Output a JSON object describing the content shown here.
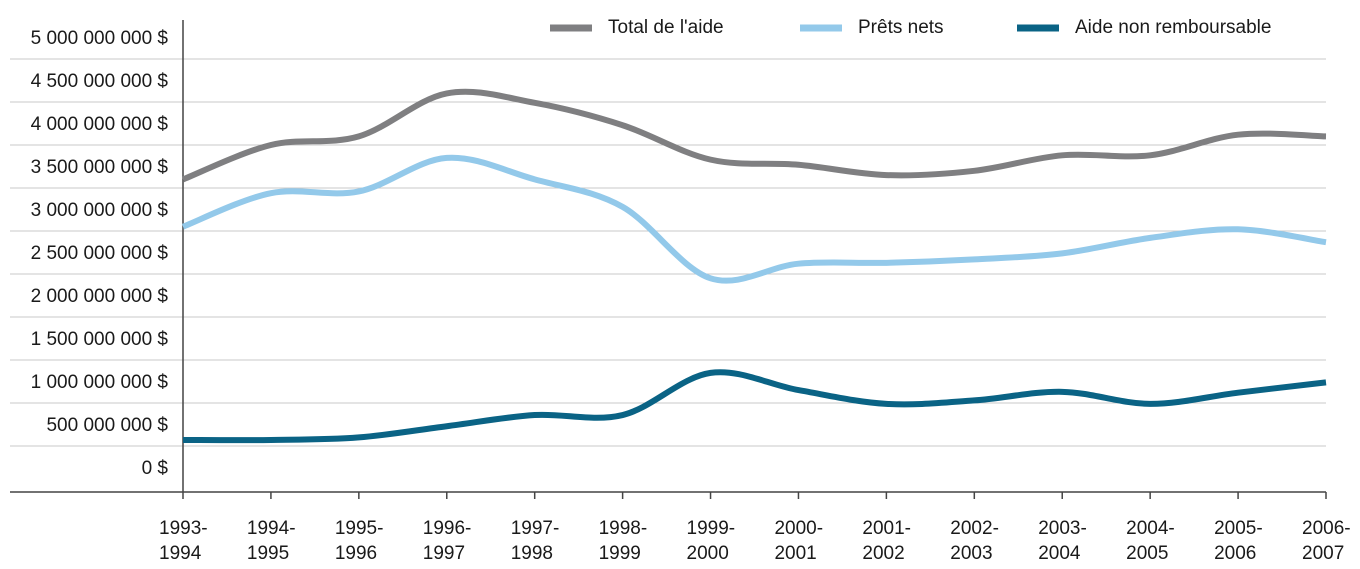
{
  "chart_data": {
    "type": "line",
    "categories": [
      "1993-1994",
      "1994-1995",
      "1995-1996",
      "1996-1997",
      "1997-1998",
      "1998-1999",
      "1999-2000",
      "2000-2001",
      "2001-2002",
      "2002-2003",
      "2003-2004",
      "2004-2005",
      "2005-2006",
      "2006-2007"
    ],
    "series": [
      {
        "name": "Total de l'aide",
        "color": "#7f7f81",
        "values": [
          3600000000,
          4000000000,
          4100000000,
          4600000000,
          4490000000,
          4230000000,
          3830000000,
          3770000000,
          3650000000,
          3700000000,
          3880000000,
          3880000000,
          4120000000,
          4100000000
        ]
      },
      {
        "name": "Prêts nets",
        "color": "#93c9ea",
        "values": [
          3050000000,
          3440000000,
          3460000000,
          3850000000,
          3600000000,
          3280000000,
          2450000000,
          2620000000,
          2630000000,
          2670000000,
          2740000000,
          2920000000,
          3020000000,
          2870000000
        ]
      },
      {
        "name": "Aide non remboursable",
        "color": "#0a6385",
        "values": [
          570000000,
          570000000,
          600000000,
          730000000,
          860000000,
          860000000,
          1350000000,
          1150000000,
          990000000,
          1030000000,
          1130000000,
          990000000,
          1120000000,
          1240000000
        ]
      }
    ],
    "ylim": [
      0,
      5500000000
    ],
    "yticks": [
      {
        "value": 0,
        "label": "0 $"
      },
      {
        "value": 500000000,
        "label": "500 000 000 $"
      },
      {
        "value": 1000000000,
        "label": "1 000 000 000 $"
      },
      {
        "value": 1500000000,
        "label": "1 500 000 000 $"
      },
      {
        "value": 2000000000,
        "label": "2 000 000 000 $"
      },
      {
        "value": 2500000000,
        "label": "2 500 000 000 $"
      },
      {
        "value": 3000000000,
        "label": "3 000 000 000 $"
      },
      {
        "value": 3500000000,
        "label": "3 500 000 000 $"
      },
      {
        "value": 4000000000,
        "label": "4 000 000 000 $"
      },
      {
        "value": 4500000000,
        "label": "4 500 000 000 $"
      },
      {
        "value": 5000000000,
        "label": "5 000 000 000 $"
      }
    ],
    "grid": true,
    "legend": "top-right"
  }
}
